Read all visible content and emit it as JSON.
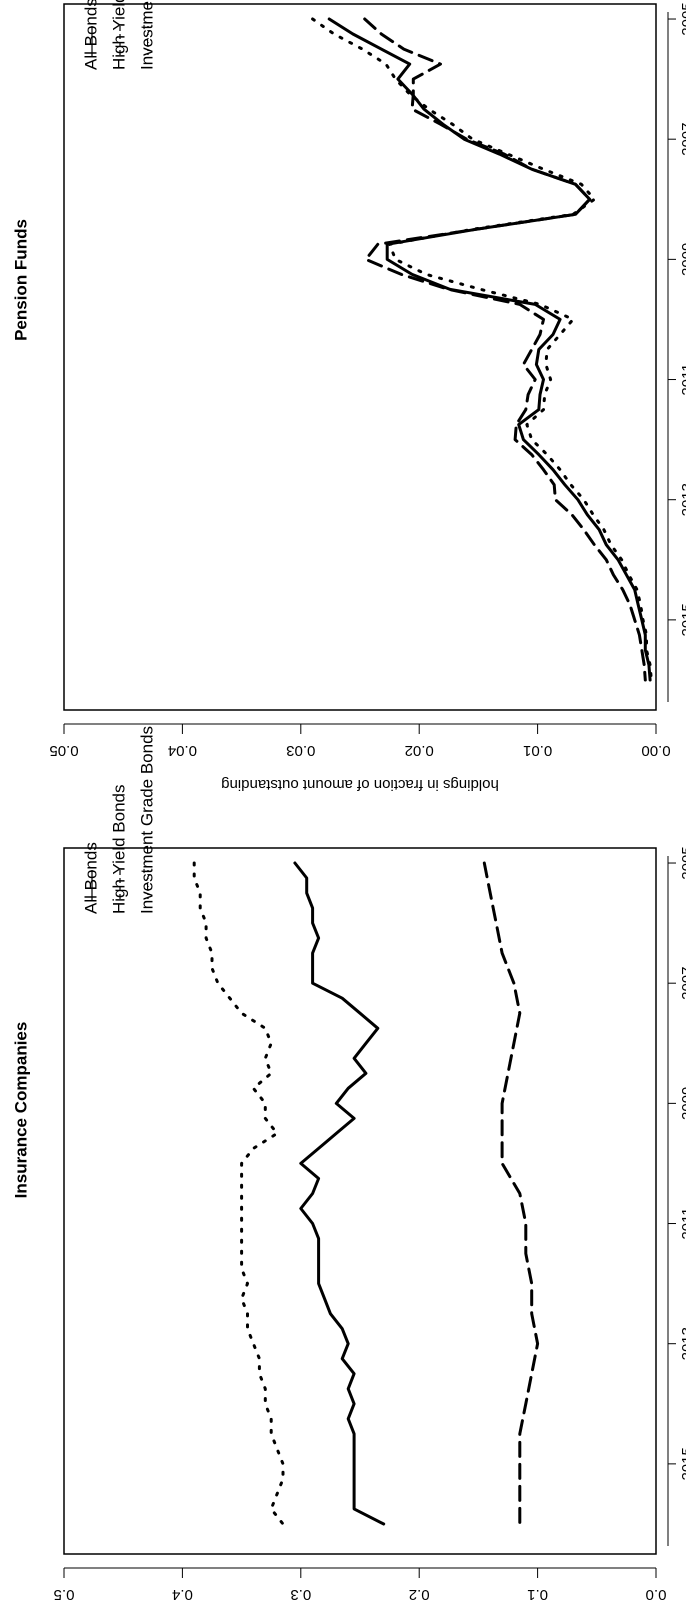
{
  "figure": {
    "panels": [
      "Insurance Companies",
      "Pension Funds"
    ]
  },
  "chart_data": [
    {
      "type": "line",
      "title": "Insurance Companies",
      "xlabel": "",
      "ylabel": "holdings in fraction of amount outstanding",
      "xlim": [
        2004.75,
        2016.5
      ],
      "ylim": [
        0.0,
        0.5
      ],
      "x_ticks": [
        "2005",
        "2007",
        "2009",
        "2011",
        "2013",
        "2015"
      ],
      "y_ticks": [
        "0.0",
        "0.1",
        "0.2",
        "0.3",
        "0.4",
        "0.5"
      ],
      "legend": {
        "position": "top-left",
        "entries": [
          "All Bonds",
          "High Yield Bonds",
          "Investment Grade Bonds"
        ]
      },
      "series": [
        {
          "name": "All Bonds",
          "style": "solid",
          "x": [
            2005.0,
            2005.25,
            2005.5,
            2005.75,
            2006.0,
            2006.25,
            2006.5,
            2006.75,
            2007.0,
            2007.25,
            2007.5,
            2007.75,
            2008.0,
            2008.25,
            2008.5,
            2008.75,
            2009.0,
            2009.25,
            2009.5,
            2009.75,
            2010.0,
            2010.25,
            2010.5,
            2010.75,
            2011.0,
            2011.25,
            2011.5,
            2011.75,
            2012.0,
            2012.25,
            2012.5,
            2012.75,
            2013.0,
            2013.25,
            2013.5,
            2013.75,
            2014.0,
            2014.25,
            2014.5,
            2014.75,
            2015.0,
            2015.25,
            2015.5,
            2015.75,
            2016.0
          ],
          "values": [
            0.305,
            0.295,
            0.295,
            0.29,
            0.29,
            0.285,
            0.29,
            0.29,
            0.29,
            0.265,
            0.25,
            0.235,
            0.245,
            0.255,
            0.245,
            0.26,
            0.27,
            0.255,
            0.27,
            0.285,
            0.3,
            0.285,
            0.29,
            0.3,
            0.29,
            0.285,
            0.285,
            0.285,
            0.285,
            0.28,
            0.275,
            0.265,
            0.26,
            0.265,
            0.255,
            0.26,
            0.255,
            0.26,
            0.255,
            0.255,
            0.255,
            0.255,
            0.255,
            0.255,
            0.23
          ]
        },
        {
          "name": "High Yield Bonds",
          "style": "dashed",
          "x": [
            2005.0,
            2005.5,
            2006.0,
            2006.5,
            2007.0,
            2007.5,
            2008.0,
            2008.5,
            2009.0,
            2009.5,
            2010.0,
            2010.5,
            2011.0,
            2011.5,
            2012.0,
            2012.5,
            2013.0,
            2013.5,
            2014.0,
            2014.5,
            2015.0,
            2015.5,
            2016.0
          ],
          "values": [
            0.145,
            0.14,
            0.135,
            0.13,
            0.12,
            0.115,
            0.12,
            0.125,
            0.13,
            0.13,
            0.13,
            0.115,
            0.11,
            0.11,
            0.105,
            0.105,
            0.1,
            0.105,
            0.11,
            0.115,
            0.115,
            0.115,
            0.115
          ]
        },
        {
          "name": "Investment Grade Bonds",
          "style": "dotted",
          "x": [
            2005.0,
            2005.25,
            2005.5,
            2005.75,
            2006.0,
            2006.25,
            2006.5,
            2006.75,
            2007.0,
            2007.25,
            2007.5,
            2007.75,
            2008.0,
            2008.25,
            2008.5,
            2008.75,
            2009.0,
            2009.25,
            2009.5,
            2009.75,
            2010.0,
            2010.25,
            2010.5,
            2010.75,
            2011.0,
            2011.25,
            2011.5,
            2011.75,
            2012.0,
            2012.25,
            2012.5,
            2012.75,
            2013.0,
            2013.25,
            2013.5,
            2013.75,
            2014.0,
            2014.25,
            2014.5,
            2014.75,
            2015.0,
            2015.25,
            2015.5,
            2015.75,
            2016.0
          ],
          "values": [
            0.39,
            0.39,
            0.385,
            0.385,
            0.38,
            0.38,
            0.375,
            0.375,
            0.37,
            0.36,
            0.35,
            0.33,
            0.325,
            0.33,
            0.325,
            0.34,
            0.33,
            0.33,
            0.32,
            0.34,
            0.35,
            0.35,
            0.35,
            0.35,
            0.35,
            0.35,
            0.35,
            0.35,
            0.345,
            0.35,
            0.345,
            0.345,
            0.34,
            0.335,
            0.335,
            0.33,
            0.33,
            0.325,
            0.325,
            0.32,
            0.315,
            0.315,
            0.32,
            0.325,
            0.315
          ]
        }
      ]
    },
    {
      "type": "line",
      "title": "Pension Funds",
      "xlabel": "",
      "ylabel": "holdings in fraction of amount outstanding",
      "xlim": [
        2004.75,
        2016.5
      ],
      "ylim": [
        0.0,
        0.05
      ],
      "x_ticks": [
        "2005",
        "2007",
        "2009",
        "2011",
        "2013",
        "2015"
      ],
      "y_ticks": [
        "0.00",
        "0.01",
        "0.02",
        "0.03",
        "0.04",
        "0.05"
      ],
      "legend": {
        "position": "top-left",
        "entries": [
          "All Bonds",
          "High Yield Bonds",
          "Investment Grade Bonds"
        ]
      },
      "series": [
        {
          "name": "All Bonds",
          "style": "solid",
          "x": [
            2005.0,
            2005.25,
            2005.5,
            2005.75,
            2006.0,
            2006.25,
            2006.5,
            2006.75,
            2007.0,
            2007.25,
            2007.5,
            2007.75,
            2008.0,
            2008.25,
            2008.5,
            2008.75,
            2009.0,
            2009.25,
            2009.5,
            2009.75,
            2010.0,
            2010.25,
            2010.5,
            2010.75,
            2011.0,
            2011.25,
            2011.5,
            2011.75,
            2012.0,
            2012.25,
            2012.5,
            2012.75,
            2013.0,
            2013.25,
            2013.5,
            2013.75,
            2014.0,
            2014.25,
            2014.5,
            2014.75,
            2015.0,
            2015.25,
            2015.5,
            2015.75,
            2016.0
          ],
          "values": [
            0.0276,
            0.0256,
            0.0232,
            0.0208,
            0.0218,
            0.0206,
            0.0196,
            0.018,
            0.0162,
            0.0132,
            0.0105,
            0.0068,
            0.0056,
            0.0068,
            0.0152,
            0.0227,
            0.0227,
            0.0206,
            0.0174,
            0.0102,
            0.0081,
            0.0087,
            0.0099,
            0.0101,
            0.0095,
            0.0098,
            0.0099,
            0.0116,
            0.0112,
            0.0099,
            0.0087,
            0.0077,
            0.0066,
            0.0058,
            0.0048,
            0.0042,
            0.0032,
            0.0025,
            0.0018,
            0.0015,
            0.0012,
            0.0009,
            0.0009,
            0.0006,
            0.0005
          ]
        },
        {
          "name": "High Yield Bonds",
          "style": "dashed",
          "x": [
            2005.0,
            2005.25,
            2005.5,
            2005.75,
            2006.0,
            2006.25,
            2006.5,
            2006.75,
            2007.0,
            2007.25,
            2007.5,
            2007.75,
            2008.0,
            2008.25,
            2008.5,
            2008.75,
            2009.0,
            2009.25,
            2009.5,
            2009.75,
            2010.0,
            2010.25,
            2010.5,
            2010.75,
            2011.0,
            2011.25,
            2011.5,
            2011.75,
            2012.0,
            2012.25,
            2012.5,
            2012.75,
            2013.0,
            2013.25,
            2013.5,
            2013.75,
            2014.0,
            2014.25,
            2014.5,
            2014.75,
            2015.0,
            2015.25,
            2015.5,
            2015.75,
            2016.0
          ],
          "values": [
            0.0246,
            0.0232,
            0.0213,
            0.0182,
            0.0205,
            0.0205,
            0.0206,
            0.0182,
            0.016,
            0.0128,
            0.0105,
            0.0068,
            0.0056,
            0.0068,
            0.0152,
            0.0235,
            0.0245,
            0.0215,
            0.0175,
            0.0115,
            0.0095,
            0.0098,
            0.0105,
            0.0112,
            0.0102,
            0.0108,
            0.011,
            0.0118,
            0.0119,
            0.0105,
            0.0095,
            0.0086,
            0.0085,
            0.0071,
            0.0061,
            0.0052,
            0.0042,
            0.0036,
            0.0028,
            0.0022,
            0.0018,
            0.0014,
            0.0012,
            0.001,
            0.0009
          ]
        },
        {
          "name": "Investment Grade Bonds",
          "style": "dotted",
          "x": [
            2005.0,
            2005.25,
            2005.5,
            2005.75,
            2006.0,
            2006.25,
            2006.5,
            2006.75,
            2007.0,
            2007.25,
            2007.5,
            2007.75,
            2008.0,
            2008.25,
            2008.5,
            2008.75,
            2009.0,
            2009.25,
            2009.5,
            2009.75,
            2010.0,
            2010.25,
            2010.5,
            2010.75,
            2011.0,
            2011.25,
            2011.5,
            2011.75,
            2012.0,
            2012.25,
            2012.5,
            2012.75,
            2013.0,
            2013.25,
            2013.5,
            2013.75,
            2014.0,
            2014.25,
            2014.5,
            2014.75,
            2015.0,
            2015.25,
            2015.5,
            2015.75,
            2016.0
          ],
          "values": [
            0.029,
            0.0272,
            0.0248,
            0.0228,
            0.022,
            0.0208,
            0.0192,
            0.0172,
            0.0155,
            0.0125,
            0.0095,
            0.0063,
            0.0052,
            0.007,
            0.0155,
            0.0225,
            0.022,
            0.0194,
            0.0148,
            0.0098,
            0.007,
            0.0081,
            0.0092,
            0.0093,
            0.0089,
            0.0094,
            0.0095,
            0.0109,
            0.0105,
            0.0092,
            0.0081,
            0.0072,
            0.0061,
            0.0053,
            0.0044,
            0.0038,
            0.0029,
            0.0023,
            0.0016,
            0.0013,
            0.0011,
            0.0008,
            0.0008,
            0.0005,
            0.0004
          ]
        }
      ]
    }
  ]
}
